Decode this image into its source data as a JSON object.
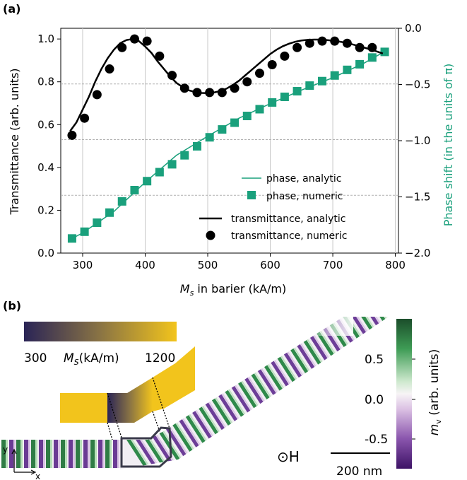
{
  "panel_a_label": "(a)",
  "panel_b_label": "(b)",
  "colors": {
    "transmittance": "#000000",
    "phase": "#1aa07c",
    "ms_low": "#2a2456",
    "ms_high": "#f2c41c",
    "mv_pos": "#1b6b36",
    "mv_neg": "#4a1b6e"
  },
  "chart_data": [
    {
      "type": "line",
      "xlabel_var": "M",
      "xlabel_sub": "s",
      "xlabel_rest": " in barier (kA/m)",
      "ylabel_left": "Transmittance (arb. units)",
      "ylabel_right": "Phase shift (in the units of π)",
      "xlim": [
        265,
        805
      ],
      "ylim_left": [
        0.0,
        1.05
      ],
      "ylim_right": [
        -2.0,
        0.0
      ],
      "x_ticks": [
        "300",
        "400",
        "500",
        "600",
        "700",
        "800"
      ],
      "y_ticks_left": [
        "0.0",
        "0.2",
        "0.4",
        "0.6",
        "0.8",
        "1.0"
      ],
      "y_ticks_right": [
        "0.0",
        "−0.5",
        "−1.0",
        "−1.5",
        "−2.0"
      ],
      "legend_top": [
        "phase, analytic",
        "phase, numeric"
      ],
      "legend_bottom": [
        "transmittance, analytic",
        "transmittance, numeric"
      ],
      "series": [
        {
          "name": "transmittance, analytic",
          "axis": "left",
          "x": [
            280,
            290,
            300,
            310,
            320,
            330,
            340,
            350,
            360,
            370,
            380,
            390,
            400,
            410,
            420,
            430,
            440,
            450,
            460,
            470,
            480,
            490,
            500,
            510,
            520,
            530,
            540,
            550,
            560,
            570,
            580,
            590,
            600,
            610,
            620,
            630,
            640,
            650,
            660,
            670,
            680,
            690,
            700,
            710,
            720,
            730,
            740,
            750,
            760,
            770,
            780
          ],
          "y": [
            0.57,
            0.61,
            0.67,
            0.73,
            0.8,
            0.86,
            0.91,
            0.95,
            0.98,
            0.995,
            1.0,
            0.99,
            0.965,
            0.935,
            0.895,
            0.86,
            0.825,
            0.795,
            0.775,
            0.76,
            0.752,
            0.748,
            0.747,
            0.75,
            0.757,
            0.768,
            0.785,
            0.805,
            0.83,
            0.855,
            0.88,
            0.905,
            0.93,
            0.95,
            0.966,
            0.978,
            0.987,
            0.993,
            0.996,
            0.997,
            0.997,
            0.995,
            0.992,
            0.988,
            0.983,
            0.976,
            0.968,
            0.96,
            0.951,
            0.942,
            0.932
          ]
        },
        {
          "name": "transmittance, numeric",
          "axis": "left",
          "x": [
            283,
            303,
            323,
            343,
            363,
            383,
            403,
            423,
            443,
            463,
            483,
            503,
            523,
            543,
            563,
            583,
            603,
            623,
            643,
            663,
            683,
            703,
            723,
            743,
            763
          ],
          "y": [
            0.55,
            0.63,
            0.74,
            0.86,
            0.96,
            1.0,
            0.99,
            0.92,
            0.83,
            0.77,
            0.75,
            0.75,
            0.75,
            0.77,
            0.8,
            0.84,
            0.88,
            0.92,
            0.96,
            0.98,
            0.99,
            0.99,
            0.98,
            0.96,
            0.96
          ]
        },
        {
          "name": "phase, analytic",
          "axis": "right",
          "x": [
            280,
            300,
            350,
            400,
            450,
            500,
            550,
            600,
            650,
            700,
            750,
            785
          ],
          "y": [
            -1.88,
            -1.82,
            -1.63,
            -1.37,
            -1.13,
            -0.96,
            -0.8,
            -0.67,
            -0.55,
            -0.44,
            -0.31,
            -0.2
          ]
        },
        {
          "name": "phase, numeric",
          "axis": "right",
          "x": [
            283,
            303,
            323,
            343,
            363,
            383,
            403,
            423,
            443,
            463,
            483,
            503,
            523,
            543,
            563,
            583,
            603,
            623,
            643,
            663,
            683,
            703,
            723,
            743,
            763,
            783
          ],
          "y": [
            -1.87,
            -1.81,
            -1.73,
            -1.64,
            -1.54,
            -1.44,
            -1.36,
            -1.28,
            -1.21,
            -1.13,
            -1.05,
            -0.97,
            -0.9,
            -0.84,
            -0.78,
            -0.72,
            -0.66,
            -0.61,
            -0.56,
            -0.51,
            -0.47,
            -0.42,
            -0.37,
            -0.32,
            -0.26,
            -0.21
          ]
        }
      ],
      "reference_lines_left": [
        0.79,
        0.53,
        0.27
      ]
    },
    {
      "type": "heatmap",
      "ms_colorbar_min": "300",
      "ms_colorbar_label_var": "M",
      "ms_colorbar_label_sub": "S",
      "ms_colorbar_label_rest": "(kA/m)",
      "ms_colorbar_max": "1200",
      "mv_ticks": [
        "0.5",
        "0.0",
        "-0.5"
      ],
      "mv_label_var": "m",
      "mv_label_sub": "v",
      "mv_label_rest": " (arb. units)",
      "field_label": "⊙H",
      "scale_label": "200 nm",
      "axis_y": "y",
      "axis_x": "x"
    }
  ]
}
